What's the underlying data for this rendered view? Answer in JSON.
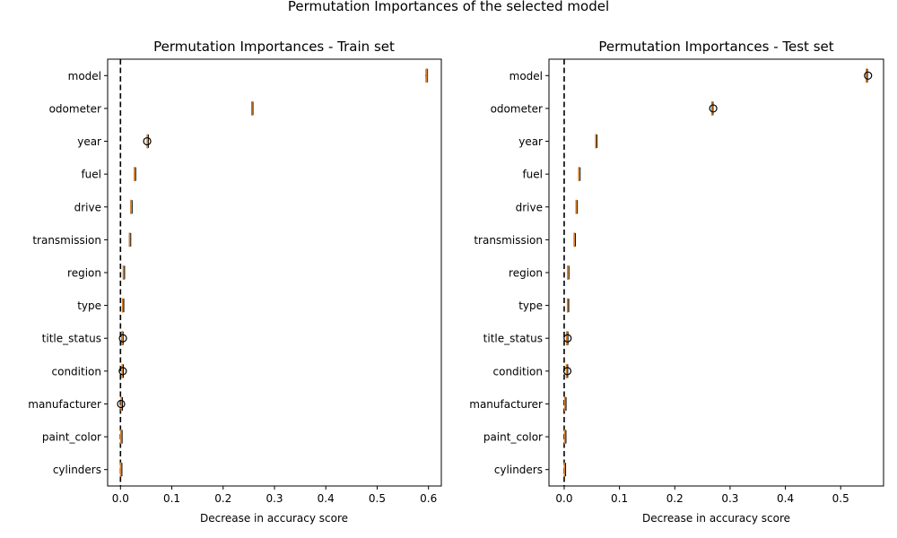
{
  "suptitle": "Permutation Importances of the selected model",
  "colors": {
    "median": "#d9822b",
    "box": "#000000",
    "zero_line": "#000000",
    "flier": "#000000"
  },
  "chart_data": [
    {
      "type": "boxplot",
      "orientation": "horizontal",
      "title": "Permutation Importances - Train set",
      "xlabel": "Decrease in accuracy score",
      "xlim": [
        -0.025,
        0.625
      ],
      "xticks": [
        0.0,
        0.1,
        0.2,
        0.3,
        0.4,
        0.5,
        0.6
      ],
      "xtick_labels": [
        "0.0",
        "0.1",
        "0.2",
        "0.3",
        "0.4",
        "0.5",
        "0.6"
      ],
      "reference_line_x": 0,
      "categories": [
        "model",
        "odometer",
        "year",
        "fuel",
        "drive",
        "transmission",
        "region",
        "type",
        "title_status",
        "condition",
        "manufacturer",
        "paint_color",
        "cylinders"
      ],
      "boxes": [
        {
          "category": "model",
          "median": 0.5965,
          "q1": 0.5955,
          "q3": 0.5975,
          "whislo": 0.594,
          "whishi": 0.598,
          "fliers": []
        },
        {
          "category": "odometer",
          "median": 0.2562,
          "q1": 0.2555,
          "q3": 0.257,
          "whislo": 0.2545,
          "whishi": 0.258,
          "fliers": []
        },
        {
          "category": "year",
          "median": 0.0525,
          "q1": 0.0518,
          "q3": 0.0532,
          "whislo": 0.051,
          "whishi": 0.054,
          "fliers": [
            0.052
          ]
        },
        {
          "category": "fuel",
          "median": 0.0275,
          "q1": 0.027,
          "q3": 0.028,
          "whislo": 0.0263,
          "whishi": 0.0288,
          "fliers": []
        },
        {
          "category": "drive",
          "median": 0.0205,
          "q1": 0.0201,
          "q3": 0.0209,
          "whislo": 0.0195,
          "whishi": 0.0215,
          "fliers": []
        },
        {
          "category": "transmission",
          "median": 0.0178,
          "q1": 0.0174,
          "q3": 0.0182,
          "whislo": 0.0168,
          "whishi": 0.0188,
          "fliers": []
        },
        {
          "category": "region",
          "median": 0.0058,
          "q1": 0.0054,
          "q3": 0.0062,
          "whislo": 0.0048,
          "whishi": 0.0068,
          "fliers": []
        },
        {
          "category": "type",
          "median": 0.0042,
          "q1": 0.0039,
          "q3": 0.0046,
          "whislo": 0.0034,
          "whishi": 0.005,
          "fliers": []
        },
        {
          "category": "title_status",
          "median": 0.0028,
          "q1": 0.0025,
          "q3": 0.0031,
          "whislo": 0.0021,
          "whishi": 0.0035,
          "fliers": [
            0.0048
          ]
        },
        {
          "category": "condition",
          "median": 0.0033,
          "q1": 0.003,
          "q3": 0.0036,
          "whislo": 0.0026,
          "whishi": 0.004,
          "fliers": [
            0.0045
          ]
        },
        {
          "category": "manufacturer",
          "median": 0.0015,
          "q1": 0.0013,
          "q3": 0.0017,
          "whislo": 0.001,
          "whishi": 0.002,
          "fliers": [
            0.0012
          ]
        },
        {
          "category": "paint_color",
          "median": 0.0008,
          "q1": 0.0006,
          "q3": 0.001,
          "whislo": 0.0003,
          "whishi": 0.0013,
          "fliers": []
        },
        {
          "category": "cylinders",
          "median": 0.0004,
          "q1": 0.0002,
          "q3": 0.0006,
          "whislo": 0.0,
          "whishi": 0.0008,
          "fliers": []
        }
      ]
    },
    {
      "type": "boxplot",
      "orientation": "horizontal",
      "title": "Permutation Importances - Test set",
      "xlabel": "Decrease in accuracy score",
      "xlim": [
        -0.0275,
        0.5775
      ],
      "xticks": [
        0.0,
        0.1,
        0.2,
        0.3,
        0.4,
        0.5
      ],
      "xtick_labels": [
        "0.0",
        "0.1",
        "0.2",
        "0.3",
        "0.4",
        "0.5"
      ],
      "reference_line_x": 0,
      "categories": [
        "model",
        "odometer",
        "year",
        "fuel",
        "drive",
        "transmission",
        "region",
        "type",
        "title_status",
        "condition",
        "manufacturer",
        "paint_color",
        "cylinders"
      ],
      "boxes": [
        {
          "category": "model",
          "median": 0.5465,
          "q1": 0.546,
          "q3": 0.547,
          "whislo": 0.5455,
          "whishi": 0.5475,
          "fliers": [
            0.5495
          ]
        },
        {
          "category": "odometer",
          "median": 0.2675,
          "q1": 0.2668,
          "q3": 0.2682,
          "whislo": 0.266,
          "whishi": 0.269,
          "fliers": [
            0.2695
          ]
        },
        {
          "category": "year",
          "median": 0.0572,
          "q1": 0.0568,
          "q3": 0.0576,
          "whislo": 0.0562,
          "whishi": 0.0582,
          "fliers": []
        },
        {
          "category": "fuel",
          "median": 0.0268,
          "q1": 0.0264,
          "q3": 0.0272,
          "whislo": 0.0258,
          "whishi": 0.0278,
          "fliers": []
        },
        {
          "category": "drive",
          "median": 0.0218,
          "q1": 0.0214,
          "q3": 0.0222,
          "whislo": 0.0208,
          "whishi": 0.0228,
          "fliers": []
        },
        {
          "category": "transmission",
          "median": 0.0182,
          "q1": 0.0178,
          "q3": 0.0186,
          "whislo": 0.0172,
          "whishi": 0.0192,
          "fliers": []
        },
        {
          "category": "region",
          "median": 0.0066,
          "q1": 0.0062,
          "q3": 0.007,
          "whislo": 0.0056,
          "whishi": 0.0076,
          "fliers": []
        },
        {
          "category": "type",
          "median": 0.0061,
          "q1": 0.0058,
          "q3": 0.0065,
          "whislo": 0.0052,
          "whishi": 0.007,
          "fliers": []
        },
        {
          "category": "title_status",
          "median": 0.0047,
          "q1": 0.0044,
          "q3": 0.005,
          "whislo": 0.004,
          "whishi": 0.0054,
          "fliers": [
            0.0062
          ]
        },
        {
          "category": "condition",
          "median": 0.0043,
          "q1": 0.004,
          "q3": 0.0046,
          "whislo": 0.0036,
          "whishi": 0.005,
          "fliers": [
            0.0057
          ]
        },
        {
          "category": "manufacturer",
          "median": 0.0012,
          "q1": 0.001,
          "q3": 0.0014,
          "whislo": 0.0006,
          "whishi": 0.0018,
          "fliers": []
        },
        {
          "category": "paint_color",
          "median": 0.001,
          "q1": 0.0008,
          "q3": 0.0012,
          "whislo": 0.0004,
          "whishi": 0.0016,
          "fliers": []
        },
        {
          "category": "cylinders",
          "median": 0.0004,
          "q1": 0.0002,
          "q3": 0.0006,
          "whislo": 0.0,
          "whishi": 0.0008,
          "fliers": []
        }
      ]
    }
  ]
}
